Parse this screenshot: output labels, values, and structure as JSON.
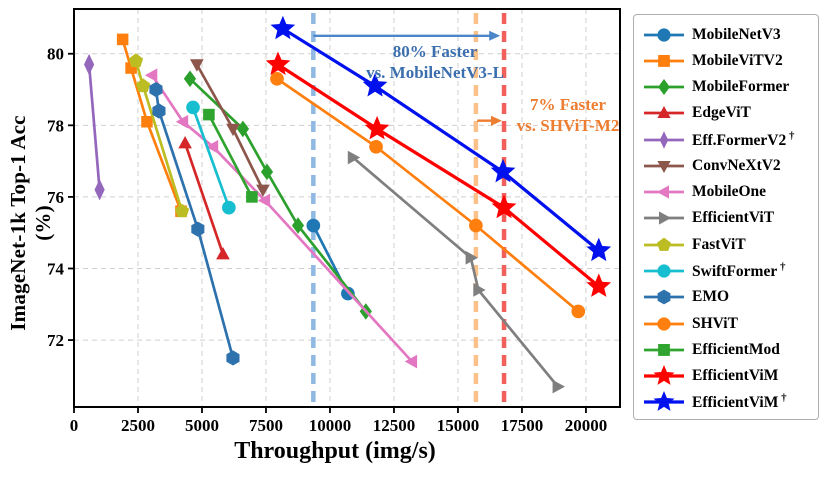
{
  "figure": {
    "xlabel": "Throughput (img/s)",
    "ylabel": "ImageNet-1k Top-1 Acc (%)"
  },
  "chart_data": {
    "type": "line",
    "title": "",
    "xlabel": "Throughput (img/s)",
    "ylabel": "ImageNet-1k Top-1 Acc (%)",
    "xlim": [
      0,
      21330
    ],
    "ylim": [
      70.13,
      81.25
    ],
    "x_ticks": [
      0,
      2500,
      5000,
      7500,
      10000,
      12500,
      15000,
      17500,
      20000
    ],
    "y_ticks": [
      72,
      74,
      76,
      78,
      80
    ],
    "grid": true,
    "legend_position": "outside-right",
    "series": [
      {
        "name": "MobileNetV3",
        "color": "#1f77b4",
        "marker": "circle",
        "points": [
          [
            9350,
            75.2
          ],
          [
            10700,
            73.3
          ]
        ]
      },
      {
        "name": "MobileViTV2",
        "color": "#ff7f0e",
        "marker": "square",
        "points": [
          [
            1900,
            80.4
          ],
          [
            2230,
            79.6
          ],
          [
            2850,
            78.1
          ],
          [
            4180,
            75.6
          ]
        ]
      },
      {
        "name": "MobileFormer",
        "color": "#2ca02c",
        "marker": "diamond",
        "points": [
          [
            4530,
            79.3
          ],
          [
            6600,
            77.9
          ],
          [
            7540,
            76.7
          ],
          [
            8750,
            75.2
          ],
          [
            11400,
            72.8
          ]
        ]
      },
      {
        "name": "EdgeViT",
        "color": "#d62728",
        "marker": "triangle-up",
        "points": [
          [
            4340,
            77.5
          ],
          [
            5820,
            74.4
          ]
        ]
      },
      {
        "name": "Eff.FormerV2",
        "dagger": "†",
        "color": "#9467bd",
        "marker": "thin-diamond",
        "points": [
          [
            590,
            79.7
          ],
          [
            1000,
            76.2
          ]
        ]
      },
      {
        "name": "ConvNeXtV2",
        "color": "#8c564b",
        "marker": "triangle-down",
        "points": [
          [
            4800,
            79.7
          ],
          [
            6210,
            77.9
          ],
          [
            7380,
            76.2
          ]
        ]
      },
      {
        "name": "MobileOne",
        "color": "#e377c2",
        "marker": "triangle-left",
        "points": [
          [
            3050,
            79.4
          ],
          [
            4260,
            78.1
          ],
          [
            5430,
            77.4
          ],
          [
            7460,
            75.9
          ],
          [
            13200,
            71.4
          ]
        ]
      },
      {
        "name": "EfficientViT",
        "color": "#7f7f7f",
        "marker": "triangle-right",
        "points": [
          [
            10900,
            77.1
          ],
          [
            15500,
            74.3
          ],
          [
            15800,
            73.4
          ],
          [
            18900,
            70.7
          ]
        ]
      },
      {
        "name": "FastViT",
        "color": "#bcbd22",
        "marker": "pentagon",
        "points": [
          [
            2420,
            79.8
          ],
          [
            2700,
            79.1
          ],
          [
            4220,
            75.6
          ]
        ]
      },
      {
        "name": "SwiftFormer",
        "dagger": "†",
        "color": "#17becf",
        "marker": "circle",
        "points": [
          [
            4650,
            78.5
          ],
          [
            6050,
            75.7
          ]
        ]
      },
      {
        "name": "EMO",
        "color": "#2d71ad",
        "marker": "hexagon",
        "points": [
          [
            3200,
            79.0
          ],
          [
            3320,
            78.4
          ],
          [
            4840,
            75.1
          ],
          [
            6210,
            71.5
          ]
        ]
      },
      {
        "name": "SHViT",
        "color": "#ff7f0e",
        "marker": "circle",
        "points": [
          [
            7930,
            79.3
          ],
          [
            11800,
            77.4
          ],
          [
            15700,
            75.2
          ],
          [
            19700,
            72.8
          ]
        ]
      },
      {
        "name": "EfficientMod",
        "color": "#2fa42f",
        "marker": "square",
        "points": [
          [
            5270,
            78.3
          ],
          [
            6950,
            76.0
          ]
        ]
      },
      {
        "name": "EfficientViM",
        "color": "#ff0000",
        "marker": "star",
        "points": [
          [
            7970,
            79.7
          ],
          [
            11840,
            77.9
          ],
          [
            16800,
            75.7
          ],
          [
            20500,
            73.5
          ]
        ]
      },
      {
        "name": "EfficientViM",
        "dagger": "†",
        "color": "#0011ee",
        "marker": "star",
        "points": [
          [
            8160,
            80.7
          ],
          [
            11760,
            79.1
          ],
          [
            16760,
            76.7
          ],
          [
            20500,
            74.5
          ]
        ]
      }
    ],
    "vlines": [
      {
        "x": 9350,
        "color": "#8fb8e2",
        "meaning": "MobileNetV3-L throughput"
      },
      {
        "x": 15700,
        "color": "#fcc089",
        "meaning": "SHViT-M2 throughput"
      },
      {
        "x": 16800,
        "color": "#f2605c",
        "meaning": "EfficientViM throughput"
      }
    ],
    "arrows": [
      {
        "from_x": 9350,
        "to_x": 16650,
        "y_acc": 80.5,
        "color": "#4a86c8"
      },
      {
        "from_x": 15750,
        "to_x": 16720,
        "y_acc": 78.13,
        "color": "#ed7d31"
      }
    ],
    "annotations": [
      {
        "lines": [
          "80% Faster",
          "vs. MobileNetV3-L"
        ],
        "color": "#3b6fae"
      },
      {
        "lines": [
          "7% Faster",
          "vs. SHViT-M2"
        ],
        "color": "#ed7d31"
      }
    ]
  }
}
